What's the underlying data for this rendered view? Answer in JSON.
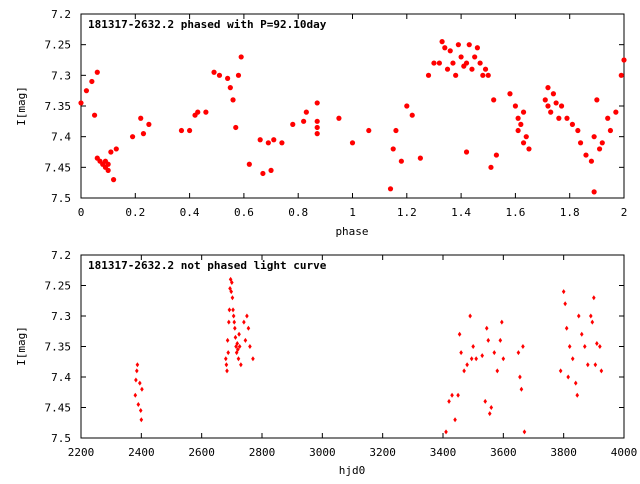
{
  "colors": {
    "points": "#ff0000",
    "axes": "#000000",
    "background": "#ffffff"
  },
  "chart_data": [
    {
      "type": "scatter",
      "title": "181317-2632.2 phased with P=92.10day",
      "xlabel": "phase",
      "ylabel": "I[mag]",
      "xlim": [
        0,
        2
      ],
      "ylim": [
        7.2,
        7.5
      ],
      "y_inverted": true,
      "grid": false,
      "x_ticks": [
        "0",
        "0.2",
        "0.4",
        "0.6",
        "0.8",
        "1",
        "1.2",
        "1.4",
        "1.6",
        "1.8",
        "2"
      ],
      "y_ticks": [
        "7.2",
        "7.25",
        "7.3",
        "7.35",
        "7.4",
        "7.45",
        "7.5"
      ],
      "marker": "filled-circle",
      "points": [
        [
          0.0,
          7.345
        ],
        [
          0.02,
          7.325
        ],
        [
          0.04,
          7.31
        ],
        [
          0.05,
          7.365
        ],
        [
          0.06,
          7.295
        ],
        [
          0.06,
          7.435
        ],
        [
          0.07,
          7.44
        ],
        [
          0.08,
          7.445
        ],
        [
          0.09,
          7.44
        ],
        [
          0.09,
          7.45
        ],
        [
          0.1,
          7.455
        ],
        [
          0.1,
          7.445
        ],
        [
          0.11,
          7.425
        ],
        [
          0.12,
          7.47
        ],
        [
          0.13,
          7.42
        ],
        [
          0.19,
          7.4
        ],
        [
          0.22,
          7.37
        ],
        [
          0.23,
          7.395
        ],
        [
          0.25,
          7.38
        ],
        [
          0.37,
          7.39
        ],
        [
          0.4,
          7.39
        ],
        [
          0.42,
          7.365
        ],
        [
          0.43,
          7.36
        ],
        [
          0.46,
          7.36
        ],
        [
          0.49,
          7.295
        ],
        [
          0.51,
          7.3
        ],
        [
          0.54,
          7.305
        ],
        [
          0.55,
          7.32
        ],
        [
          0.56,
          7.34
        ],
        [
          0.57,
          7.385
        ],
        [
          0.58,
          7.3
        ],
        [
          0.59,
          7.27
        ],
        [
          0.62,
          7.445
        ],
        [
          0.66,
          7.405
        ],
        [
          0.67,
          7.46
        ],
        [
          0.69,
          7.41
        ],
        [
          0.7,
          7.455
        ],
        [
          0.71,
          7.405
        ],
        [
          0.74,
          7.41
        ],
        [
          0.78,
          7.38
        ],
        [
          0.82,
          7.375
        ],
        [
          0.83,
          7.36
        ],
        [
          0.87,
          7.345
        ],
        [
          0.87,
          7.375
        ],
        [
          0.87,
          7.385
        ],
        [
          0.87,
          7.395
        ],
        [
          0.95,
          7.37
        ],
        [
          1.0,
          7.41
        ],
        [
          1.06,
          7.39
        ],
        [
          1.14,
          7.485
        ],
        [
          1.15,
          7.42
        ],
        [
          1.16,
          7.39
        ],
        [
          1.18,
          7.44
        ],
        [
          1.2,
          7.35
        ],
        [
          1.22,
          7.365
        ],
        [
          1.25,
          7.435
        ],
        [
          1.28,
          7.3
        ],
        [
          1.3,
          7.28
        ],
        [
          1.32,
          7.28
        ],
        [
          1.33,
          7.245
        ],
        [
          1.34,
          7.255
        ],
        [
          1.35,
          7.29
        ],
        [
          1.36,
          7.26
        ],
        [
          1.37,
          7.28
        ],
        [
          1.38,
          7.3
        ],
        [
          1.39,
          7.25
        ],
        [
          1.4,
          7.27
        ],
        [
          1.41,
          7.285
        ],
        [
          1.42,
          7.28
        ],
        [
          1.43,
          7.25
        ],
        [
          1.44,
          7.29
        ],
        [
          1.45,
          7.27
        ],
        [
          1.46,
          7.255
        ],
        [
          1.47,
          7.28
        ],
        [
          1.48,
          7.3
        ],
        [
          1.49,
          7.29
        ],
        [
          1.5,
          7.3
        ],
        [
          1.42,
          7.425
        ],
        [
          1.51,
          7.45
        ],
        [
          1.52,
          7.34
        ],
        [
          1.53,
          7.43
        ],
        [
          1.58,
          7.33
        ],
        [
          1.6,
          7.35
        ],
        [
          1.61,
          7.37
        ],
        [
          1.62,
          7.38
        ],
        [
          1.63,
          7.36
        ],
        [
          1.64,
          7.4
        ],
        [
          1.61,
          7.39
        ],
        [
          1.63,
          7.41
        ],
        [
          1.65,
          7.42
        ],
        [
          1.71,
          7.34
        ],
        [
          1.72,
          7.35
        ],
        [
          1.73,
          7.36
        ],
        [
          1.74,
          7.33
        ],
        [
          1.75,
          7.345
        ],
        [
          1.76,
          7.37
        ],
        [
          1.72,
          7.32
        ],
        [
          1.77,
          7.35
        ],
        [
          1.79,
          7.37
        ],
        [
          1.81,
          7.38
        ],
        [
          1.83,
          7.39
        ],
        [
          1.84,
          7.41
        ],
        [
          1.86,
          7.43
        ],
        [
          1.88,
          7.44
        ],
        [
          1.89,
          7.4
        ],
        [
          1.89,
          7.49
        ],
        [
          1.9,
          7.34
        ],
        [
          1.91,
          7.42
        ],
        [
          1.92,
          7.41
        ],
        [
          1.94,
          7.37
        ],
        [
          1.95,
          7.39
        ],
        [
          1.97,
          7.36
        ],
        [
          1.99,
          7.3
        ],
        [
          2.0,
          7.275
        ]
      ]
    },
    {
      "type": "scatter",
      "title": "181317-2632.2 not phased light curve",
      "xlabel": "hjd0",
      "ylabel": "I[mag]",
      "xlim": [
        2200,
        4000
      ],
      "ylim": [
        7.2,
        7.5
      ],
      "y_inverted": true,
      "grid": false,
      "x_ticks": [
        "2200",
        "2400",
        "2600",
        "2800",
        "3000",
        "3200",
        "3400",
        "3600",
        "3800",
        "4000"
      ],
      "y_ticks": [
        "7.2",
        "7.25",
        "7.3",
        "7.35",
        "7.4",
        "7.45",
        "7.5"
      ],
      "marker": "small-diamond",
      "points": [
        [
          2380,
          7.43
        ],
        [
          2382,
          7.405
        ],
        [
          2385,
          7.39
        ],
        [
          2387,
          7.38
        ],
        [
          2390,
          7.445
        ],
        [
          2395,
          7.41
        ],
        [
          2398,
          7.455
        ],
        [
          2400,
          7.47
        ],
        [
          2402,
          7.42
        ],
        [
          2680,
          7.37
        ],
        [
          2682,
          7.38
        ],
        [
          2684,
          7.39
        ],
        [
          2686,
          7.34
        ],
        [
          2688,
          7.36
        ],
        [
          2690,
          7.31
        ],
        [
          2692,
          7.29
        ],
        [
          2694,
          7.255
        ],
        [
          2696,
          7.24
        ],
        [
          2698,
          7.26
        ],
        [
          2700,
          7.245
        ],
        [
          2702,
          7.27
        ],
        [
          2704,
          7.29
        ],
        [
          2706,
          7.3
        ],
        [
          2708,
          7.31
        ],
        [
          2710,
          7.32
        ],
        [
          2712,
          7.335
        ],
        [
          2714,
          7.35
        ],
        [
          2716,
          7.36
        ],
        [
          2718,
          7.345
        ],
        [
          2720,
          7.355
        ],
        [
          2722,
          7.37
        ],
        [
          2724,
          7.33
        ],
        [
          2726,
          7.35
        ],
        [
          2730,
          7.38
        ],
        [
          2740,
          7.31
        ],
        [
          2745,
          7.34
        ],
        [
          2750,
          7.3
        ],
        [
          2755,
          7.32
        ],
        [
          2760,
          7.35
        ],
        [
          2770,
          7.37
        ],
        [
          3410,
          7.49
        ],
        [
          3420,
          7.44
        ],
        [
          3430,
          7.43
        ],
        [
          3440,
          7.47
        ],
        [
          3450,
          7.43
        ],
        [
          3455,
          7.33
        ],
        [
          3460,
          7.36
        ],
        [
          3470,
          7.39
        ],
        [
          3480,
          7.38
        ],
        [
          3490,
          7.3
        ],
        [
          3495,
          7.37
        ],
        [
          3500,
          7.35
        ],
        [
          3510,
          7.37
        ],
        [
          3530,
          7.365
        ],
        [
          3540,
          7.44
        ],
        [
          3545,
          7.32
        ],
        [
          3550,
          7.34
        ],
        [
          3555,
          7.46
        ],
        [
          3560,
          7.45
        ],
        [
          3570,
          7.36
        ],
        [
          3580,
          7.39
        ],
        [
          3590,
          7.34
        ],
        [
          3595,
          7.31
        ],
        [
          3600,
          7.37
        ],
        [
          3650,
          7.36
        ],
        [
          3655,
          7.4
        ],
        [
          3660,
          7.42
        ],
        [
          3665,
          7.35
        ],
        [
          3670,
          7.49
        ],
        [
          3790,
          7.39
        ],
        [
          3800,
          7.26
        ],
        [
          3805,
          7.28
        ],
        [
          3810,
          7.32
        ],
        [
          3815,
          7.4
        ],
        [
          3820,
          7.35
        ],
        [
          3830,
          7.37
        ],
        [
          3840,
          7.41
        ],
        [
          3845,
          7.43
        ],
        [
          3850,
          7.3
        ],
        [
          3860,
          7.33
        ],
        [
          3870,
          7.35
        ],
        [
          3880,
          7.38
        ],
        [
          3890,
          7.3
        ],
        [
          3895,
          7.31
        ],
        [
          3900,
          7.27
        ],
        [
          3905,
          7.38
        ],
        [
          3910,
          7.345
        ],
        [
          3920,
          7.35
        ],
        [
          3925,
          7.39
        ]
      ]
    }
  ]
}
